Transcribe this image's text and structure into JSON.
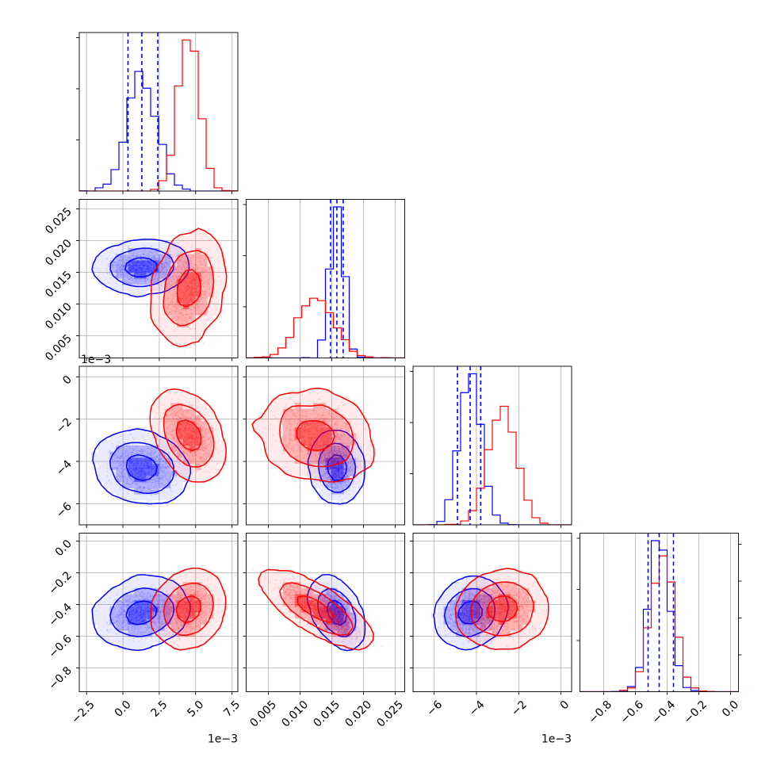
{
  "chart_data": {
    "type": "scatter",
    "subtype": "corner",
    "series": [
      {
        "name": "",
        "color": "#0000ff"
      },
      {
        "name": "",
        "color": "#ff0000"
      }
    ],
    "grid": true,
    "axes": [
      {
        "range": [
          -3.0,
          7.9
        ],
        "ticks": [
          -2.5,
          0.0,
          2.5,
          5.0,
          7.5
        ],
        "tick_labels": [
          "−2.5",
          "0.0",
          "2.5",
          "5.0",
          "7.5"
        ],
        "offset_text": "1e−3"
      },
      {
        "range": [
          0.0015,
          0.0265
        ],
        "ticks": [
          0.005,
          0.01,
          0.015,
          0.02,
          0.025
        ],
        "tick_labels": [
          "0.005",
          "0.010",
          "0.015",
          "0.020",
          "0.025"
        ],
        "offset_text": ""
      },
      {
        "range": [
          -7.0,
          0.5
        ],
        "ticks": [
          -6,
          -4,
          -2,
          0
        ],
        "tick_labels": [
          "−6",
          "−4",
          "−2",
          "0"
        ],
        "offset_text": "1e−3"
      },
      {
        "range": [
          -0.95,
          0.05
        ],
        "ticks": [
          -0.8,
          -0.6,
          -0.4,
          -0.2,
          0.0
        ],
        "tick_labels": [
          "−0.8",
          "−0.6",
          "−0.4",
          "−0.2",
          "0.0"
        ],
        "offset_text": ""
      }
    ],
    "distributions": [
      {
        "name": "",
        "color": "#0000ff",
        "mean": [
          1.3,
          0.0158,
          -4.3,
          -0.45
        ],
        "sd": [
          1.0,
          0.0011,
          0.5,
          0.065
        ],
        "corr": [
          [
            1,
            0.1,
            -0.2,
            0.2
          ],
          [
            0.1,
            1,
            -0.1,
            -0.6
          ],
          [
            -0.2,
            -0.1,
            1,
            0.2
          ],
          [
            0.2,
            -0.6,
            0.2,
            1
          ]
        ]
      },
      {
        "name": "",
        "color": "#ff0000",
        "mean": [
          4.5,
          0.0125,
          -2.8,
          -0.43
        ],
        "sd": [
          0.75,
          0.0028,
          0.65,
          0.07
        ],
        "corr": [
          [
            1,
            0.3,
            -0.4,
            0.2
          ],
          [
            0.3,
            1,
            -0.2,
            -0.9
          ],
          [
            -0.4,
            -0.2,
            1,
            0.1
          ],
          [
            0.2,
            -0.9,
            0.1,
            1
          ]
        ]
      }
    ],
    "quantile_lines": {
      "color": "#0000ff",
      "values": [
        [
          0.35,
          1.3,
          2.4
        ],
        [
          0.0148,
          0.0158,
          0.0168
        ],
        [
          -4.9,
          -4.3,
          -3.8
        ],
        [
          -0.52,
          -0.45,
          -0.36
        ]
      ]
    }
  }
}
